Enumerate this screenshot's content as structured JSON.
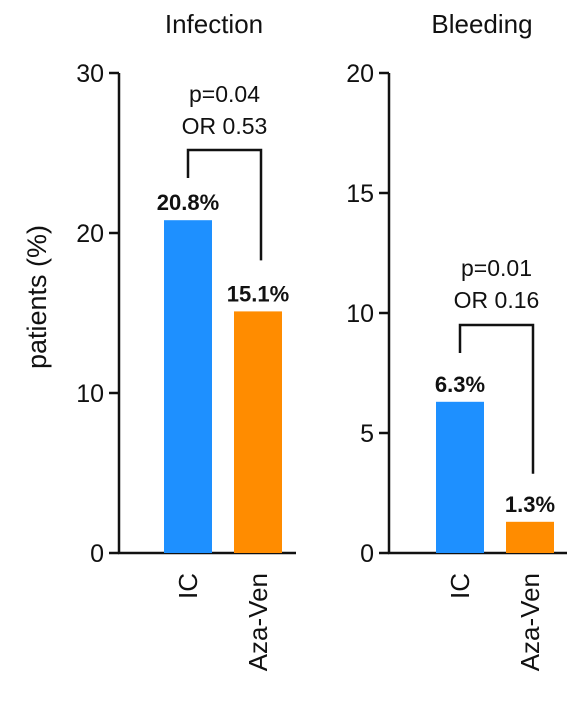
{
  "chart_data": [
    {
      "type": "bar",
      "title": "Infection",
      "ylabel": "patients (%)",
      "ylim": [
        0,
        30
      ],
      "yticks": [
        "0",
        "10",
        "20",
        "30"
      ],
      "categories": [
        "IC",
        "Aza-Ven"
      ],
      "values": [
        20.8,
        15.1
      ],
      "data_labels": [
        "20.8%",
        "15.1%"
      ],
      "colors": [
        "#1E90FF",
        "#FF8C00"
      ],
      "annotation": {
        "pvalue": "p=0.04",
        "odds_ratio": "OR 0.53"
      }
    },
    {
      "type": "bar",
      "title": "Bleeding",
      "ylim": [
        0,
        20
      ],
      "yticks": [
        "0",
        "5",
        "10",
        "15",
        "20"
      ],
      "categories": [
        "IC",
        "Aza-Ven"
      ],
      "values": [
        6.3,
        1.3
      ],
      "data_labels": [
        "6.3%",
        "1.3%"
      ],
      "colors": [
        "#1E90FF",
        "#FF8C00"
      ],
      "annotation": {
        "pvalue": "p=0.01",
        "odds_ratio": "OR 0.16"
      }
    }
  ]
}
